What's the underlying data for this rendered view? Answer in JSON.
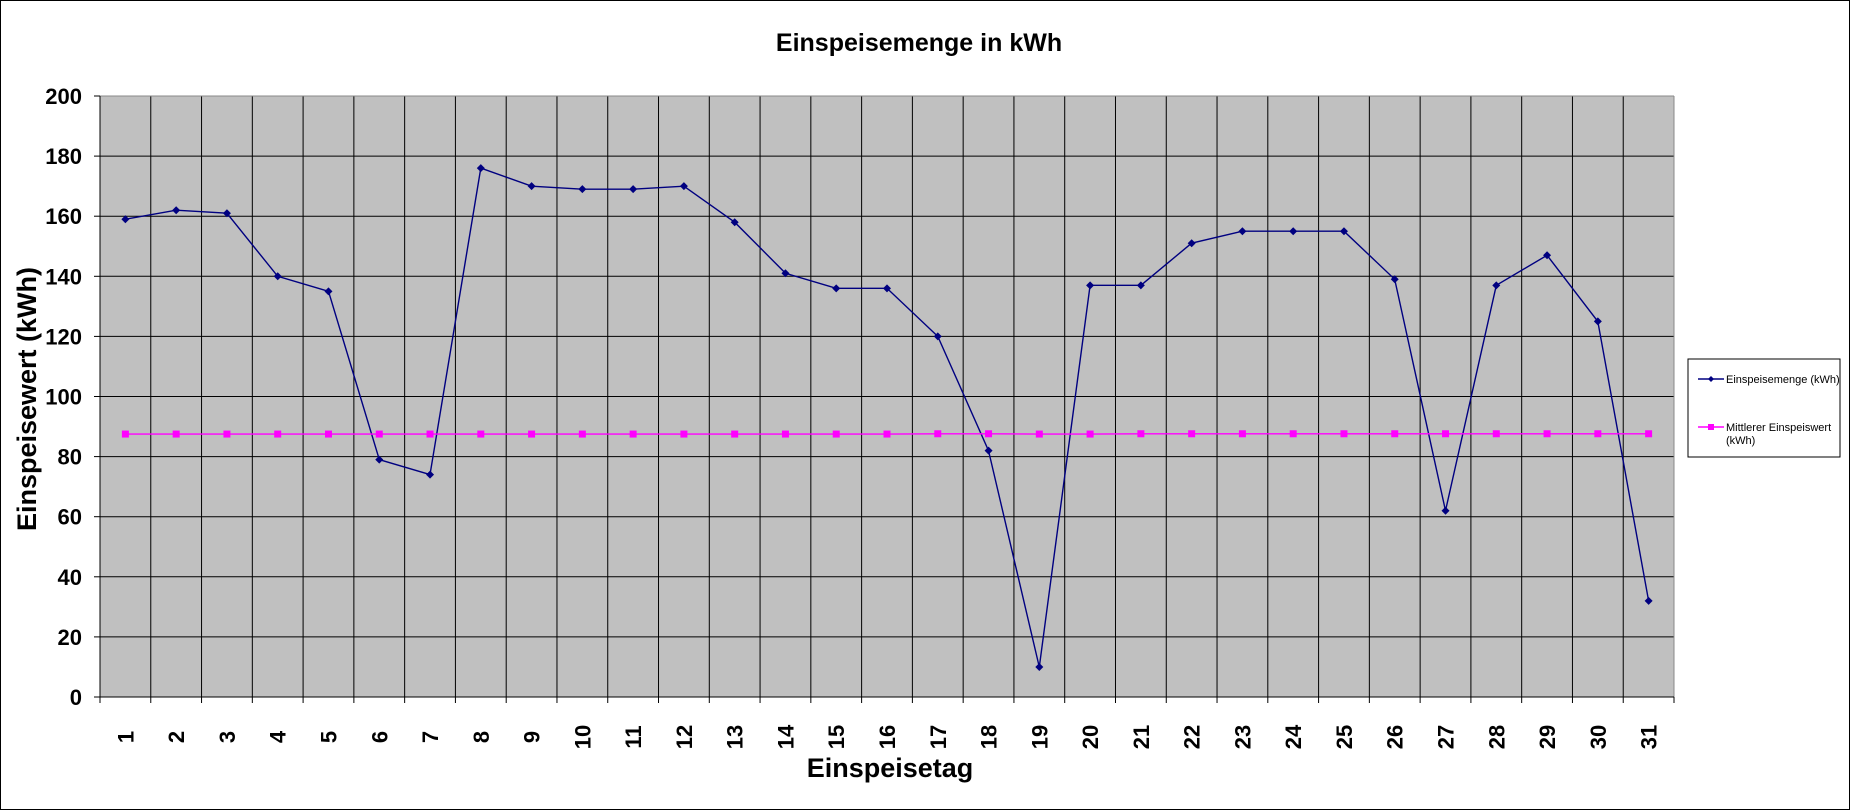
{
  "chart_data": {
    "type": "line",
    "title": "Einspeisemenge in kWh",
    "xlabel": "Einspeisetag",
    "ylabel": "Einspeisewert  (kWh)",
    "x": [
      1,
      2,
      3,
      4,
      5,
      6,
      7,
      8,
      9,
      10,
      11,
      12,
      13,
      14,
      15,
      16,
      17,
      18,
      19,
      20,
      21,
      22,
      23,
      24,
      25,
      26,
      27,
      28,
      29,
      30,
      31
    ],
    "ylim": [
      0,
      200
    ],
    "yticks": [
      0,
      20,
      40,
      60,
      80,
      100,
      120,
      140,
      160,
      180,
      200
    ],
    "grid": true,
    "plot_background": "#c0c0c0",
    "legend_position": "right",
    "series": [
      {
        "name": "Einspeisemenge (kWh)",
        "color": "#000080",
        "marker": "diamond",
        "values": [
          159,
          162,
          161,
          140,
          135,
          79,
          74,
          176,
          170,
          169,
          169,
          170,
          158,
          141,
          136,
          136,
          120,
          82,
          10,
          137,
          137,
          151,
          155,
          155,
          155,
          139,
          62,
          137,
          147,
          125,
          32
        ]
      },
      {
        "name": "Mittlerer Einspeiswert (kWh)",
        "color": "#ff00ff",
        "marker": "square",
        "values": [
          87.5,
          87.5,
          87.5,
          87.5,
          87.5,
          87.5,
          87.5,
          87.5,
          87.5,
          87.5,
          87.5,
          87.5,
          87.5,
          87.5,
          87.5,
          87.5,
          87.6,
          87.6,
          87.5,
          87.5,
          87.6,
          87.6,
          87.6,
          87.6,
          87.6,
          87.6,
          87.6,
          87.6,
          87.6,
          87.6,
          87.6
        ]
      }
    ],
    "legend": {
      "entries": [
        {
          "label_lines": [
            "Einspeisemenge (kWh)"
          ]
        },
        {
          "label_lines": [
            "Mittlerer Einspeiswert",
            "(kWh)"
          ]
        }
      ]
    }
  }
}
